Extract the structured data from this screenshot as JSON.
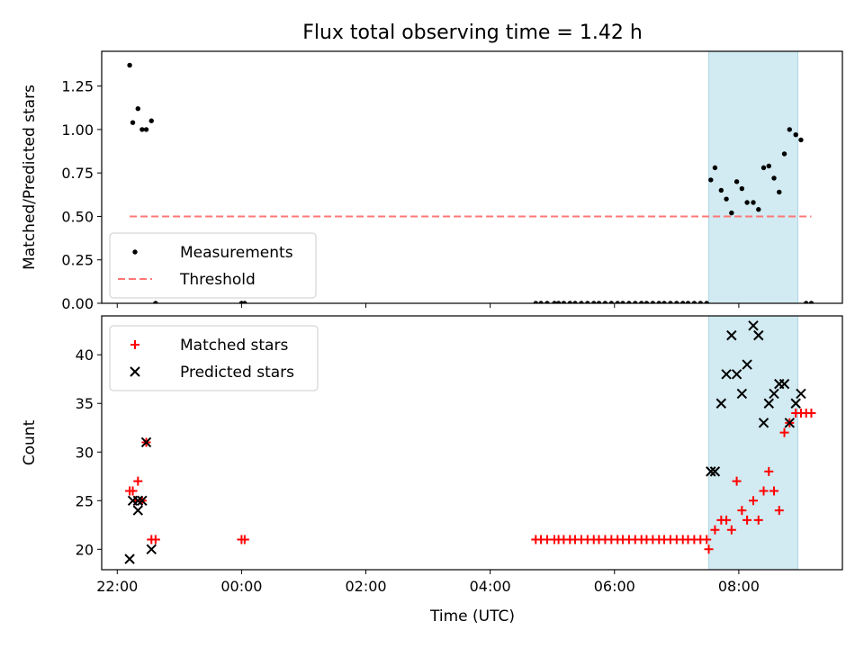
{
  "title": "Flux total observing time = 1.42 h",
  "colors": {
    "measurements": "#000000",
    "threshold": "#ff7777",
    "matched": "#ff0000",
    "predicted": "#000000",
    "window": "#add8e6"
  },
  "chart_data": [
    {
      "type": "scatter",
      "ylabel": "Matched/Predicted stars",
      "ylim": [
        0,
        1.45
      ],
      "yticks": [
        0.0,
        0.25,
        0.5,
        0.75,
        1.0,
        1.25
      ],
      "ytick_labels": [
        "0.00",
        "0.25",
        "0.50",
        "0.75",
        "1.00",
        "1.25"
      ],
      "xlim": [
        "21:45",
        "33:40"
      ],
      "xticks": [
        "22:00",
        "24:00",
        "26:00",
        "28:00",
        "30:00",
        "32:00"
      ],
      "grid": false,
      "legend_position": "lower-left",
      "shaded_window": [
        "31:31",
        "32:57"
      ],
      "series": [
        {
          "name": "Measurements",
          "kind": "scatter",
          "points": [
            [
              "22:12",
              1.37
            ],
            [
              "22:15",
              1.04
            ],
            [
              "22:20",
              1.12
            ],
            [
              "22:24",
              1.0
            ],
            [
              "22:28",
              1.0
            ],
            [
              "22:33",
              1.05
            ],
            [
              "22:37",
              0.0
            ],
            [
              "24:00",
              0.0
            ],
            [
              "24:03",
              0.0
            ],
            [
              "28:44",
              0.0
            ],
            [
              "28:49",
              0.0
            ],
            [
              "28:55",
              0.0
            ],
            [
              "29:02",
              0.0
            ],
            [
              "29:06",
              0.0
            ],
            [
              "29:11",
              0.0
            ],
            [
              "29:17",
              0.0
            ],
            [
              "29:22",
              0.0
            ],
            [
              "29:28",
              0.0
            ],
            [
              "29:34",
              0.0
            ],
            [
              "29:40",
              0.0
            ],
            [
              "29:45",
              0.0
            ],
            [
              "29:51",
              0.0
            ],
            [
              "29:57",
              0.0
            ],
            [
              "30:03",
              0.0
            ],
            [
              "30:08",
              0.0
            ],
            [
              "30:14",
              0.0
            ],
            [
              "30:20",
              0.0
            ],
            [
              "30:26",
              0.0
            ],
            [
              "30:31",
              0.0
            ],
            [
              "30:37",
              0.0
            ],
            [
              "30:43",
              0.0
            ],
            [
              "30:48",
              0.0
            ],
            [
              "30:54",
              0.0
            ],
            [
              "31:00",
              0.0
            ],
            [
              "31:06",
              0.0
            ],
            [
              "31:11",
              0.0
            ],
            [
              "31:17",
              0.0
            ],
            [
              "31:23",
              0.0
            ],
            [
              "31:29",
              0.0
            ],
            [
              "31:33",
              0.71
            ],
            [
              "31:37",
              0.78
            ],
            [
              "31:43",
              0.65
            ],
            [
              "31:48",
              0.6
            ],
            [
              "31:53",
              0.52
            ],
            [
              "31:58",
              0.7
            ],
            [
              "32:03",
              0.66
            ],
            [
              "32:08",
              0.58
            ],
            [
              "32:14",
              0.58
            ],
            [
              "32:19",
              0.54
            ],
            [
              "32:24",
              0.78
            ],
            [
              "32:29",
              0.79
            ],
            [
              "32:34",
              0.72
            ],
            [
              "32:39",
              0.64
            ],
            [
              "32:44",
              0.86
            ],
            [
              "32:49",
              1.0
            ],
            [
              "32:55",
              0.97
            ],
            [
              "33:00",
              0.94
            ],
            [
              "33:05",
              0.0
            ],
            [
              "33:10",
              0.0
            ]
          ]
        },
        {
          "name": "Threshold",
          "kind": "dashed-line",
          "points": [
            [
              "22:12",
              0.5
            ],
            [
              "33:10",
              0.5
            ]
          ]
        }
      ]
    },
    {
      "type": "scatter",
      "xlabel": "Time (UTC)",
      "ylabel": "Count",
      "ylim": [
        17.9,
        44.0
      ],
      "yticks": [
        20,
        25,
        30,
        35,
        40
      ],
      "ytick_labels": [
        "20",
        "25",
        "30",
        "35",
        "40"
      ],
      "xlim": [
        "21:45",
        "33:40"
      ],
      "xticks": [
        "22:00",
        "24:00",
        "26:00",
        "28:00",
        "30:00",
        "32:00"
      ],
      "xtick_labels": [
        "22:00",
        "00:00",
        "02:00",
        "04:00",
        "06:00",
        "08:00"
      ],
      "grid": false,
      "legend_position": "upper-left",
      "shaded_window": [
        "31:31",
        "32:57"
      ],
      "series": [
        {
          "name": "Matched stars",
          "kind": "plus",
          "points": [
            [
              "22:12",
              26
            ],
            [
              "22:15",
              26
            ],
            [
              "22:18",
              25
            ],
            [
              "22:20",
              27
            ],
            [
              "22:24",
              25
            ],
            [
              "22:28",
              31
            ],
            [
              "22:33",
              21
            ],
            [
              "22:37",
              21
            ],
            [
              "24:00",
              21
            ],
            [
              "24:03",
              21
            ],
            [
              "28:44",
              21
            ],
            [
              "28:49",
              21
            ],
            [
              "28:55",
              21
            ],
            [
              "29:02",
              21
            ],
            [
              "29:06",
              21
            ],
            [
              "29:11",
              21
            ],
            [
              "29:17",
              21
            ],
            [
              "29:22",
              21
            ],
            [
              "29:28",
              21
            ],
            [
              "29:34",
              21
            ],
            [
              "29:40",
              21
            ],
            [
              "29:45",
              21
            ],
            [
              "29:51",
              21
            ],
            [
              "29:57",
              21
            ],
            [
              "30:03",
              21
            ],
            [
              "30:08",
              21
            ],
            [
              "30:14",
              21
            ],
            [
              "30:20",
              21
            ],
            [
              "30:26",
              21
            ],
            [
              "30:31",
              21
            ],
            [
              "30:37",
              21
            ],
            [
              "30:43",
              21
            ],
            [
              "30:48",
              21
            ],
            [
              "30:54",
              21
            ],
            [
              "31:00",
              21
            ],
            [
              "31:06",
              21
            ],
            [
              "31:11",
              21
            ],
            [
              "31:17",
              21
            ],
            [
              "31:23",
              21
            ],
            [
              "31:29",
              21
            ],
            [
              "31:31",
              20
            ],
            [
              "31:37",
              22
            ],
            [
              "31:43",
              23
            ],
            [
              "31:48",
              23
            ],
            [
              "31:53",
              22
            ],
            [
              "31:58",
              27
            ],
            [
              "32:03",
              24
            ],
            [
              "32:08",
              23
            ],
            [
              "32:14",
              25
            ],
            [
              "32:19",
              23
            ],
            [
              "32:24",
              26
            ],
            [
              "32:29",
              28
            ],
            [
              "32:34",
              26
            ],
            [
              "32:39",
              24
            ],
            [
              "32:44",
              32
            ],
            [
              "32:49",
              33
            ],
            [
              "32:55",
              34
            ],
            [
              "33:00",
              34
            ],
            [
              "33:05",
              34
            ],
            [
              "33:10",
              34
            ]
          ]
        },
        {
          "name": "Predicted stars",
          "kind": "x",
          "points": [
            [
              "22:12",
              19
            ],
            [
              "22:15",
              25
            ],
            [
              "22:20",
              25
            ],
            [
              "22:20",
              24
            ],
            [
              "22:24",
              25
            ],
            [
              "22:28",
              31
            ],
            [
              "22:33",
              20
            ],
            [
              "31:33",
              28
            ],
            [
              "31:37",
              28
            ],
            [
              "31:43",
              35
            ],
            [
              "31:48",
              38
            ],
            [
              "31:53",
              42
            ],
            [
              "31:58",
              38
            ],
            [
              "32:03",
              36
            ],
            [
              "32:08",
              39
            ],
            [
              "32:14",
              43
            ],
            [
              "32:19",
              42
            ],
            [
              "32:24",
              33
            ],
            [
              "32:29",
              35
            ],
            [
              "32:34",
              36
            ],
            [
              "32:39",
              37
            ],
            [
              "32:44",
              37
            ],
            [
              "32:49",
              33
            ],
            [
              "32:55",
              35
            ],
            [
              "33:00",
              36
            ]
          ]
        }
      ]
    }
  ]
}
